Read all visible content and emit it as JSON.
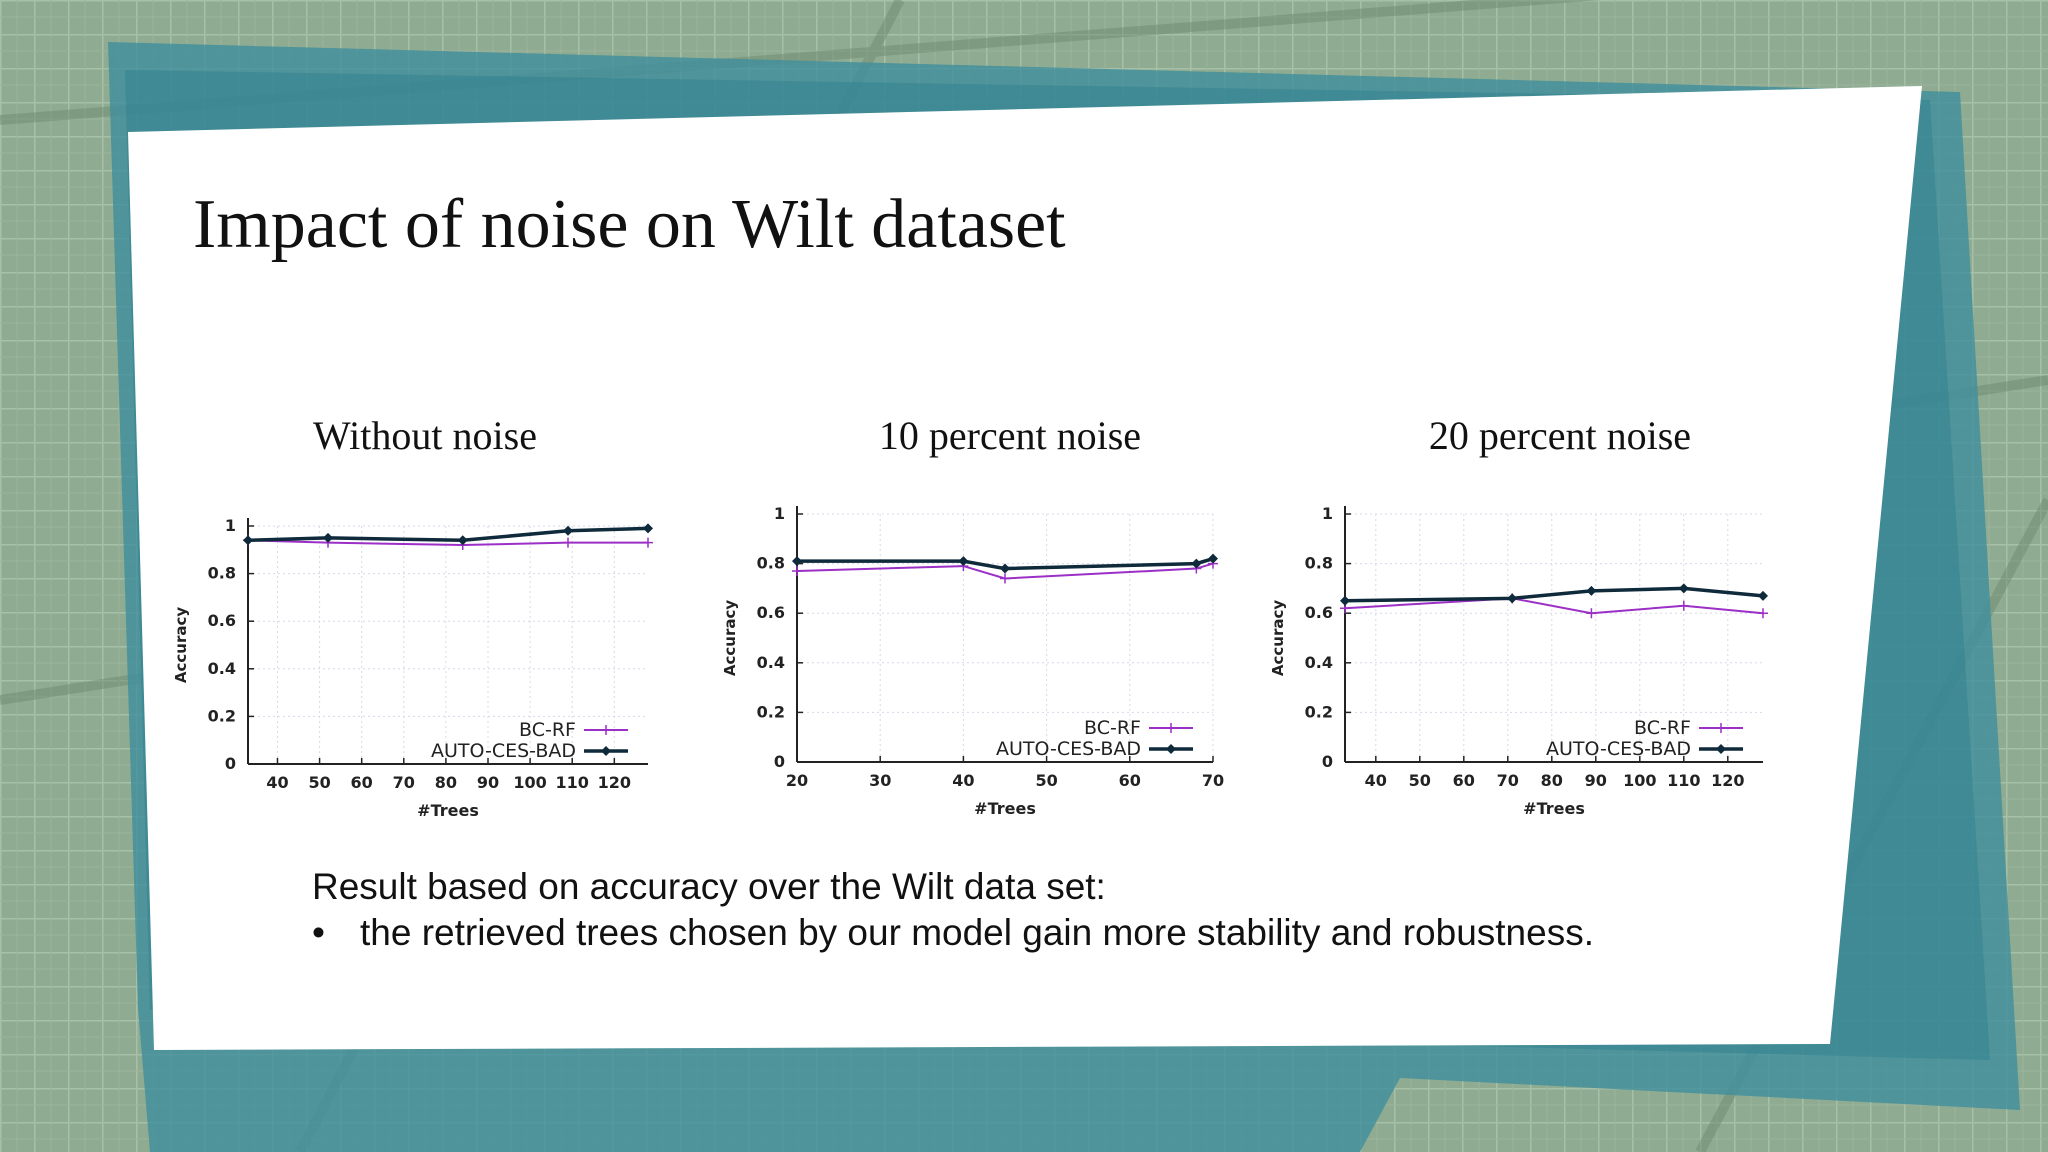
{
  "slide": {
    "title": "Impact of noise on Wilt dataset",
    "summary": "Result based on accuracy over the Wilt data set:",
    "bullet": "the retrieved trees chosen by our model gain more stability and robustness.",
    "bullet_marker": "•"
  },
  "colors": {
    "bc_rf": "#9b2fc6",
    "auto_ces_bad": "#0f2a3a",
    "grid": "#d8d8e8",
    "axis": "#222222"
  },
  "chart_data": [
    {
      "type": "line",
      "title": "Without noise",
      "xlabel": "#Trees",
      "ylabel": "Accuracy",
      "xlim": [
        33,
        128
      ],
      "ylim": [
        0,
        1
      ],
      "xticks": [
        40,
        50,
        60,
        70,
        80,
        90,
        100,
        110,
        120
      ],
      "yticks": [
        0,
        0.2,
        0.4,
        0.6,
        0.8,
        1
      ],
      "ytick_labels": [
        "0",
        "0.2",
        "0.4",
        "0.6",
        "0.8",
        "1"
      ],
      "legend": "bottom-right",
      "series": [
        {
          "name": "BC-RF",
          "x": [
            33,
            52,
            84,
            109,
            128
          ],
          "y": [
            0.94,
            0.93,
            0.92,
            0.93,
            0.93
          ]
        },
        {
          "name": "AUTO-CES-BAD",
          "x": [
            33,
            52,
            84,
            109,
            128
          ],
          "y": [
            0.94,
            0.95,
            0.94,
            0.98,
            0.99
          ]
        }
      ]
    },
    {
      "type": "line",
      "title": "10 percent noise",
      "xlabel": "#Trees",
      "ylabel": "Accuracy",
      "xlim": [
        20,
        70
      ],
      "ylim": [
        0,
        1
      ],
      "xticks": [
        20,
        30,
        40,
        50,
        60,
        70
      ],
      "yticks": [
        0,
        0.2,
        0.4,
        0.6,
        0.8,
        1
      ],
      "ytick_labels": [
        "0",
        "0.2",
        "0.4",
        "0.6",
        "0.8",
        "1"
      ],
      "legend": "bottom-right",
      "series": [
        {
          "name": "BC-RF",
          "x": [
            20,
            40,
            45,
            68,
            70
          ],
          "y": [
            0.77,
            0.79,
            0.74,
            0.78,
            0.8
          ]
        },
        {
          "name": "AUTO-CES-BAD",
          "x": [
            20,
            40,
            45,
            68,
            70
          ],
          "y": [
            0.81,
            0.81,
            0.78,
            0.8,
            0.82
          ]
        }
      ]
    },
    {
      "type": "line",
      "title": "20 percent noise",
      "xlabel": "#Trees",
      "ylabel": "Accuracy",
      "xlim": [
        33,
        128
      ],
      "ylim": [
        0,
        1
      ],
      "xticks": [
        40,
        50,
        60,
        70,
        80,
        90,
        100,
        110,
        120
      ],
      "yticks": [
        0,
        0.2,
        0.4,
        0.6,
        0.8,
        1
      ],
      "ytick_labels": [
        "0",
        "0.2",
        "0.4",
        "0.6",
        "0.8",
        "1"
      ],
      "legend": "bottom-right",
      "series": [
        {
          "name": "BC-RF",
          "x": [
            33,
            71,
            89,
            110,
            128
          ],
          "y": [
            0.62,
            0.66,
            0.6,
            0.63,
            0.6
          ]
        },
        {
          "name": "AUTO-CES-BAD",
          "x": [
            33,
            71,
            89,
            110,
            128
          ],
          "y": [
            0.65,
            0.66,
            0.69,
            0.7,
            0.67
          ]
        }
      ]
    }
  ]
}
